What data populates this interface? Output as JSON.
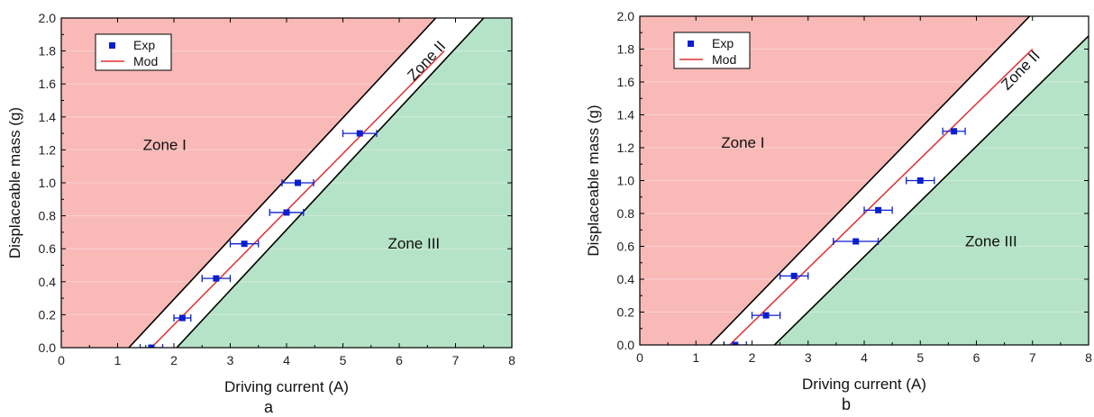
{
  "chart_data": [
    {
      "type": "scatter",
      "panel_label": "a",
      "xlabel": "Driving current (A)",
      "ylabel": "Displaceable mass (g)",
      "xlim": [
        0,
        8
      ],
      "ylim": [
        0,
        2.0
      ],
      "xticks": [
        "0",
        "1",
        "2",
        "3",
        "4",
        "5",
        "6",
        "7",
        "8"
      ],
      "yticks": [
        "0.0",
        "0.2",
        "0.4",
        "0.6",
        "0.8",
        "1.0",
        "1.2",
        "1.4",
        "1.6",
        "1.8",
        "2.0"
      ],
      "legend": {
        "position": "top-left",
        "entries": [
          "Exp",
          "Mod"
        ]
      },
      "zones": {
        "zone1": "Zone I",
        "zone2": "Zone II",
        "zone3": "Zone III"
      },
      "boundaries": [
        {
          "x": [
            1.2,
            6.65
          ],
          "y": [
            0,
            2.0
          ]
        },
        {
          "x": [
            2.05,
            7.5
          ],
          "y": [
            0,
            2.0
          ]
        }
      ],
      "colors": {
        "zone1": "#f9b9b7",
        "zone2": "#ffffff",
        "zone3": "#b5e3c7",
        "exp": "#0a1fd1",
        "mod": "#e03030",
        "boundary": "#000000"
      },
      "series": [
        {
          "name": "Exp",
          "x": [
            1.6,
            2.15,
            2.75,
            3.25,
            4.0,
            4.2,
            5.3
          ],
          "y": [
            0.0,
            0.18,
            0.42,
            0.63,
            0.82,
            1.0,
            1.3
          ],
          "xerr": [
            0.2,
            0.15,
            0.25,
            0.25,
            0.3,
            0.28,
            0.3
          ]
        },
        {
          "name": "Mod",
          "x": [
            1.6,
            6.8
          ],
          "y": [
            0.0,
            1.8
          ]
        }
      ]
    },
    {
      "type": "scatter",
      "panel_label": "b",
      "xlabel": "Driving current (A)",
      "ylabel": "Displaceable mass (g)",
      "xlim": [
        0,
        8
      ],
      "ylim": [
        0,
        2.0
      ],
      "xticks": [
        "0",
        "1",
        "2",
        "3",
        "4",
        "5",
        "6",
        "7",
        "8"
      ],
      "yticks": [
        "0.0",
        "0.2",
        "0.4",
        "0.6",
        "0.8",
        "1.0",
        "1.2",
        "1.4",
        "1.6",
        "1.8",
        "2.0"
      ],
      "legend": {
        "position": "top-left",
        "entries": [
          "Exp",
          "Mod"
        ]
      },
      "zones": {
        "zone1": "Zone I",
        "zone2": "Zone II",
        "zone3": "Zone III"
      },
      "boundaries": [
        {
          "x": [
            1.25,
            6.95
          ],
          "y": [
            0,
            2.0
          ]
        },
        {
          "x": [
            2.4,
            8.0
          ],
          "y": [
            0,
            1.88
          ]
        }
      ],
      "colors": {
        "zone1": "#f9b9b7",
        "zone2": "#ffffff",
        "zone3": "#b5e3c7",
        "exp": "#0a1fd1",
        "mod": "#e03030",
        "boundary": "#000000"
      },
      "series": [
        {
          "name": "Exp",
          "x": [
            1.7,
            2.25,
            2.75,
            3.85,
            4.25,
            5.0,
            5.6
          ],
          "y": [
            0.0,
            0.18,
            0.42,
            0.63,
            0.82,
            1.0,
            1.3
          ],
          "xerr": [
            0.2,
            0.25,
            0.25,
            0.4,
            0.25,
            0.25,
            0.2
          ]
        },
        {
          "name": "Mod",
          "x": [
            1.6,
            7.0
          ],
          "y": [
            0.0,
            1.8
          ]
        }
      ]
    }
  ]
}
